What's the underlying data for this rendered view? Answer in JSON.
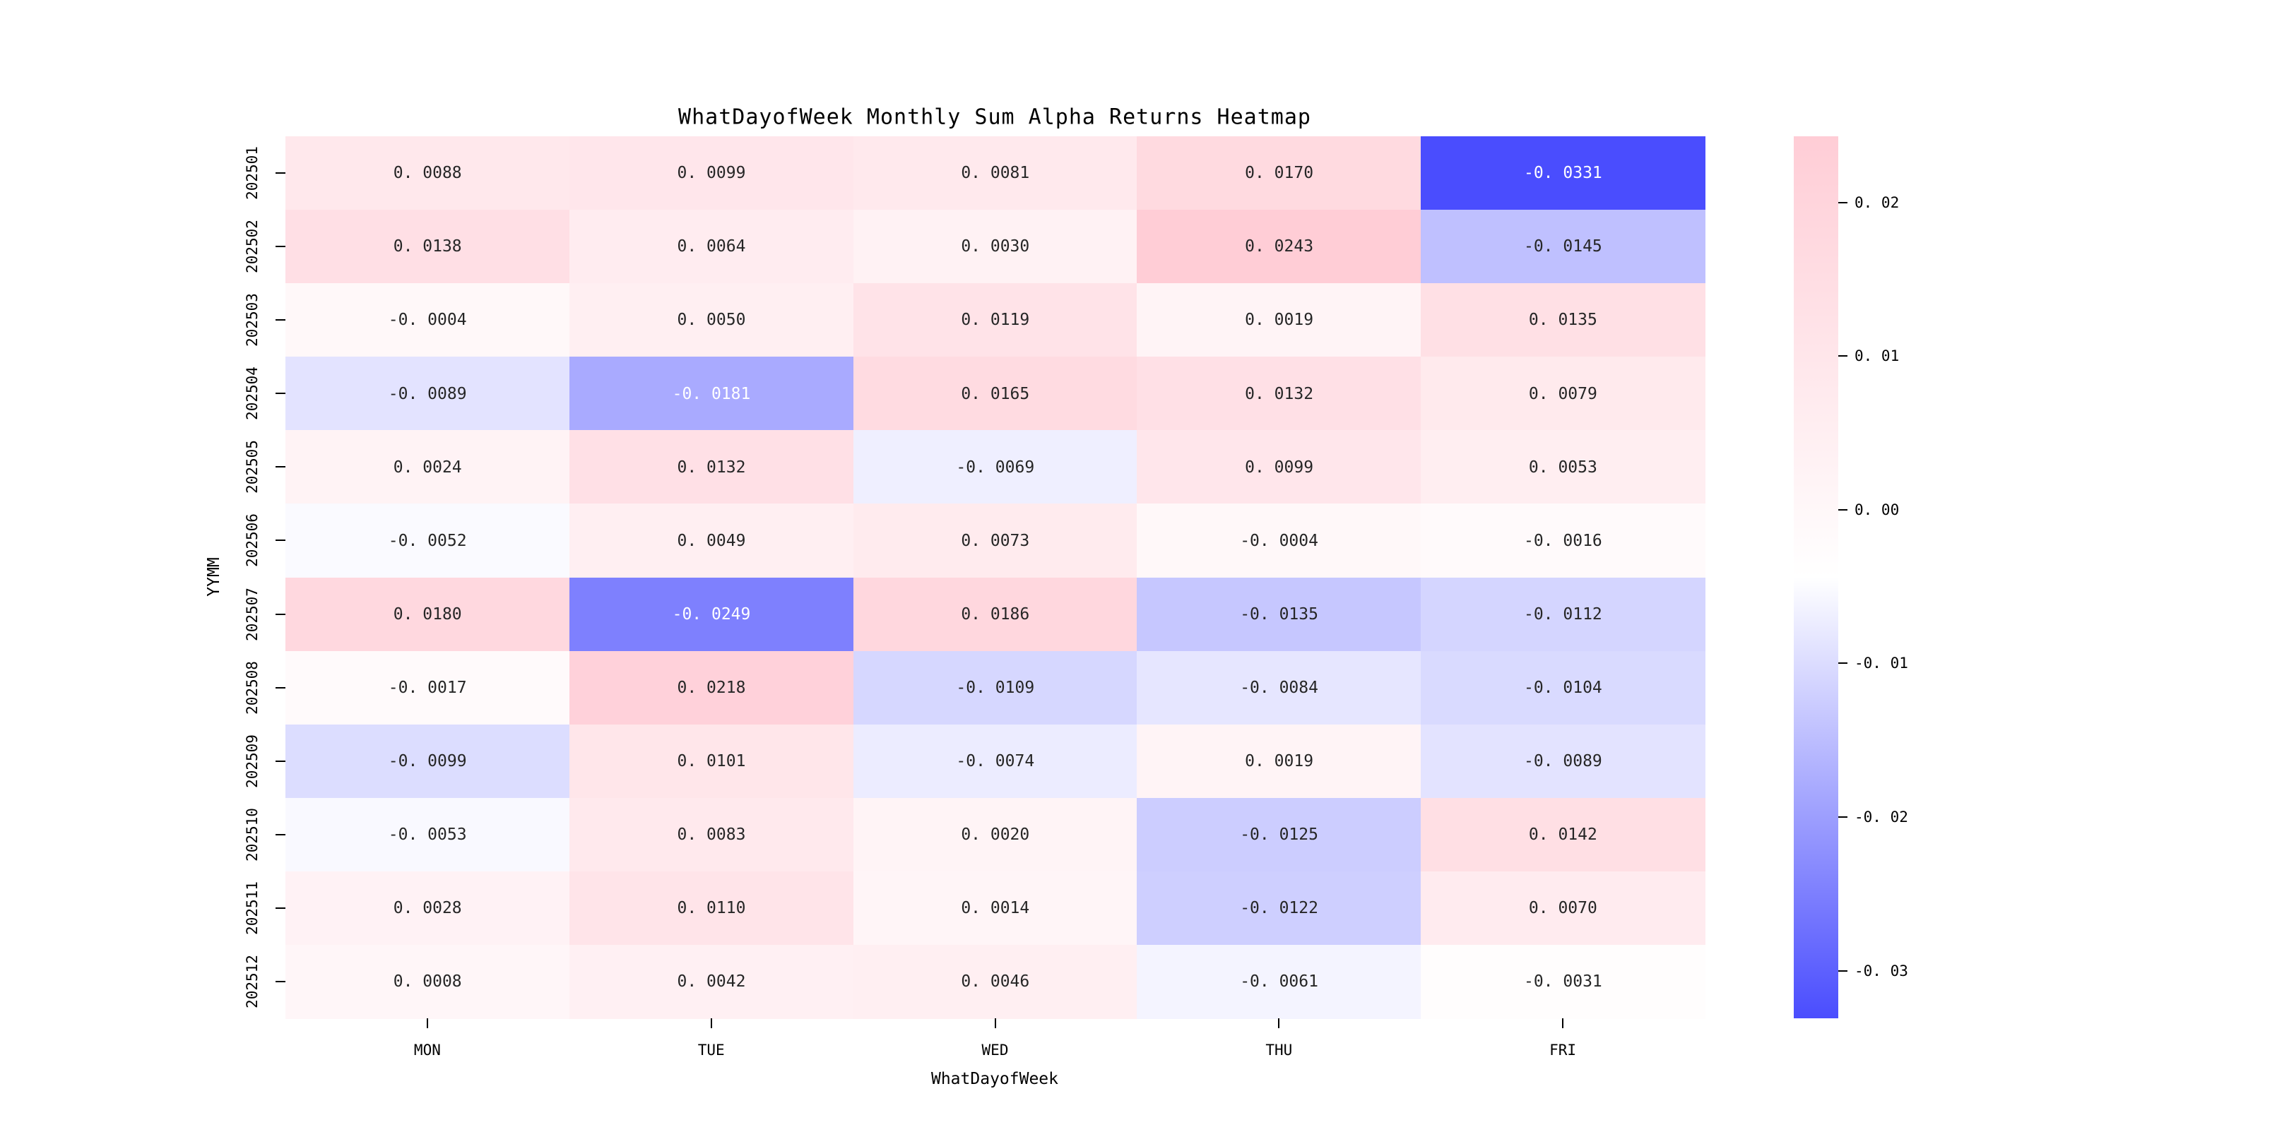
{
  "figure": {
    "background": "#FFFFFF"
  },
  "chart_data": {
    "type": "heatmap",
    "title": "WhatDayofWeek Monthly Sum Alpha Returns Heatmap",
    "xlabel": "WhatDayofWeek",
    "ylabel": "YYMM",
    "x_categories": [
      "MON",
      "TUE",
      "WED",
      "THU",
      "FRI"
    ],
    "y_categories": [
      "202501",
      "202502",
      "202503",
      "202504",
      "202505",
      "202506",
      "202507",
      "202508",
      "202509",
      "202510",
      "202511",
      "202512"
    ],
    "values": [
      [
        0.0088,
        0.0099,
        0.0081,
        0.017,
        -0.0331
      ],
      [
        0.0138,
        0.0064,
        0.003,
        0.0243,
        -0.0145
      ],
      [
        -0.0004,
        0.005,
        0.0119,
        0.0019,
        0.0135
      ],
      [
        -0.0089,
        -0.0181,
        0.0165,
        0.0132,
        0.0079
      ],
      [
        0.0024,
        0.0132,
        -0.0069,
        0.0099,
        0.0053
      ],
      [
        -0.0052,
        0.0049,
        0.0073,
        -0.0004,
        -0.0016
      ],
      [
        0.018,
        -0.0249,
        0.0186,
        -0.0135,
        -0.0112
      ],
      [
        -0.0017,
        0.0218,
        -0.0109,
        -0.0084,
        -0.0104
      ],
      [
        -0.0099,
        0.0101,
        -0.0074,
        0.0019,
        -0.0089
      ],
      [
        -0.0053,
        0.0083,
        0.002,
        -0.0125,
        0.0142
      ],
      [
        0.0028,
        0.011,
        0.0014,
        -0.0122,
        0.007
      ],
      [
        0.0008,
        0.0042,
        0.0046,
        -0.0061,
        -0.0031
      ]
    ],
    "annotation_decimals": 4,
    "annotation_color_dark": "#262626",
    "annotation_color_light": "#FFFFFF",
    "grid": false,
    "legend_position": "right",
    "colorbar": {
      "position": "right",
      "tick_values": [
        0.02,
        0.01,
        0.0,
        -0.01,
        -0.02,
        -0.03
      ],
      "tick_decimals": 2,
      "vmax": 0.0243,
      "vmin": -0.0331,
      "color_max": "#FFCDD6",
      "color_mid": "#FFFFFF",
      "color_min": "#4A4DFE"
    }
  }
}
